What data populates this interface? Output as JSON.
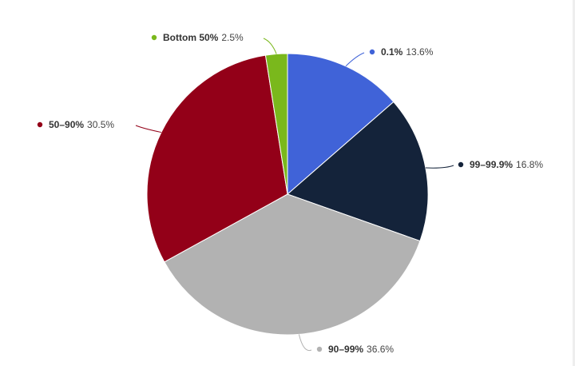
{
  "chart_data": {
    "type": "pie",
    "unit": "%",
    "slices": [
      {
        "label": "0.1%",
        "value": 13.6,
        "value_label": "13.6%",
        "color": "#4063d8"
      },
      {
        "label": "99–99.9%",
        "value": 16.8,
        "value_label": "16.8%",
        "color": "#14233a"
      },
      {
        "label": "90–99%",
        "value": 36.6,
        "value_label": "36.6%",
        "color": "#b2b2b2"
      },
      {
        "label": "50–90%",
        "value": 30.5,
        "value_label": "30.5%",
        "color": "#930018"
      },
      {
        "label": "Bottom 50%",
        "value": 2.5,
        "value_label": "2.5%",
        "color": "#7ab81c"
      }
    ]
  }
}
